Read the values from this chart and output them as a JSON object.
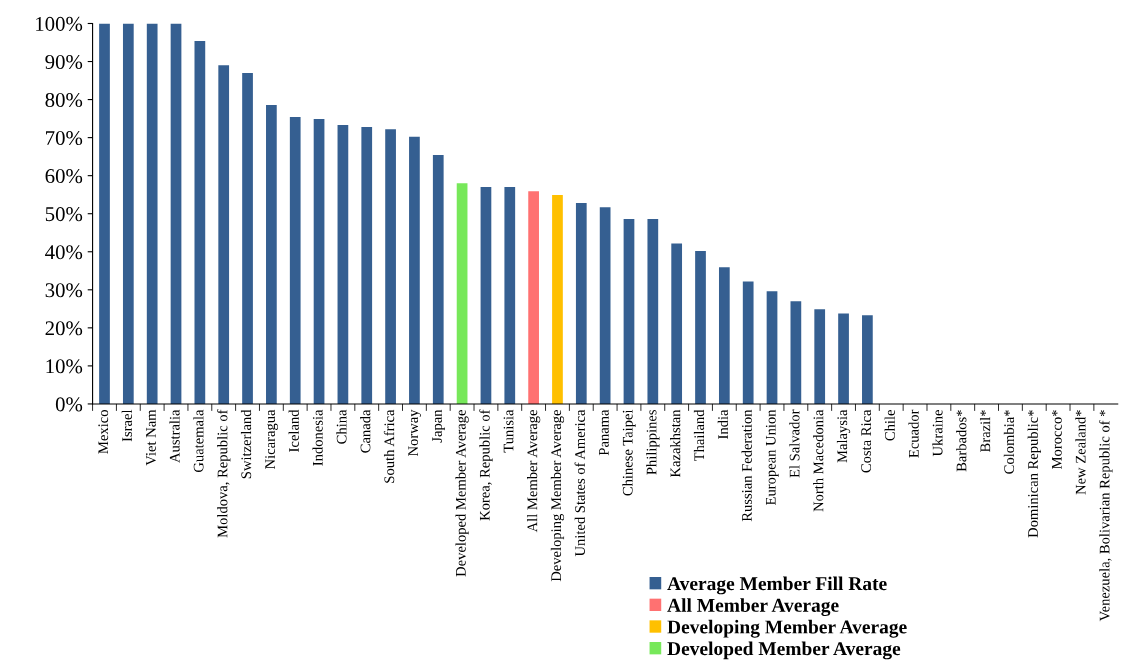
{
  "chart_data": {
    "type": "bar",
    "categories": [
      "Mexico",
      "Israel",
      "Viet Nam",
      "Australia",
      "Guatemala",
      "Moldova, Republic of",
      "Switzerland",
      "Nicaragua",
      "Iceland",
      "Indonesia",
      "China",
      "Canada",
      "South Africa",
      "Norway",
      "Japan",
      "Developed Member Average",
      "Korea, Republic of",
      "Tunisia",
      "All Member Average",
      "Developing Member Average",
      "United States of America",
      "Panama",
      "Chinese Taipei",
      "Philippines",
      "Kazakhstan",
      "Thailand",
      "India",
      "Russian Federation",
      "European Union",
      "El Salvador",
      "North Macedonia",
      "Malaysia",
      "Costa Rica",
      "Chile",
      "Ecuador",
      "Ukraine",
      "Barbados*",
      "Brazil*",
      "Colombia*",
      "Dominican Republic*",
      "Morocco*",
      "New Zealand*",
      "Venezuela, Bolivarian Republic of *"
    ],
    "series": [
      {
        "name": "Average Member Fill Rate",
        "color": "#355f91",
        "values": [
          100,
          100,
          100,
          100,
          95.4,
          89.0,
          87.0,
          78.6,
          75.4,
          74.9,
          73.3,
          72.8,
          72.2,
          70.2,
          65.4,
          null,
          57.0,
          57.0,
          null,
          null,
          52.8,
          51.7,
          48.6,
          48.6,
          42.2,
          40.2,
          35.9,
          32.2,
          29.6,
          27.0,
          24.9,
          23.8,
          23.3,
          0,
          0,
          0,
          0,
          0,
          0,
          0,
          0,
          0,
          0
        ]
      },
      {
        "name": "All Member Average",
        "color": "#ff7171",
        "values": [
          null,
          null,
          null,
          null,
          null,
          null,
          null,
          null,
          null,
          null,
          null,
          null,
          null,
          null,
          null,
          null,
          null,
          null,
          55.9,
          null,
          null,
          null,
          null,
          null,
          null,
          null,
          null,
          null,
          null,
          null,
          null,
          null,
          null,
          null,
          null,
          null,
          null,
          null,
          null,
          null,
          null,
          null,
          null
        ]
      },
      {
        "name": "Developing Member Average",
        "color": "#ffc000",
        "values": [
          null,
          null,
          null,
          null,
          null,
          null,
          null,
          null,
          null,
          null,
          null,
          null,
          null,
          null,
          null,
          null,
          null,
          null,
          null,
          54.9,
          null,
          null,
          null,
          null,
          null,
          null,
          null,
          null,
          null,
          null,
          null,
          null,
          null,
          null,
          null,
          null,
          null,
          null,
          null,
          null,
          null,
          null,
          null
        ]
      },
      {
        "name": "Developed Member Average",
        "color": "#77e85a",
        "values": [
          null,
          null,
          null,
          null,
          null,
          null,
          null,
          null,
          null,
          null,
          null,
          null,
          null,
          null,
          null,
          58.0,
          null,
          null,
          null,
          null,
          null,
          null,
          null,
          null,
          null,
          null,
          null,
          null,
          null,
          null,
          null,
          null,
          null,
          null,
          null,
          null,
          null,
          null,
          null,
          null,
          null,
          null,
          null
        ]
      }
    ],
    "ylim": [
      0,
      100
    ],
    "yticks": [
      {
        "value": 0,
        "label": "0%"
      },
      {
        "value": 10,
        "label": "10%"
      },
      {
        "value": 20,
        "label": "20%"
      },
      {
        "value": 30,
        "label": "30%"
      },
      {
        "value": 40,
        "label": "40%"
      },
      {
        "value": 50,
        "label": "50%"
      },
      {
        "value": 60,
        "label": "60%"
      },
      {
        "value": 70,
        "label": "70%"
      },
      {
        "value": 80,
        "label": "80%"
      },
      {
        "value": 90,
        "label": "90%"
      },
      {
        "value": 100,
        "label": "100%"
      }
    ],
    "grid": false,
    "legend": "bottom right"
  }
}
